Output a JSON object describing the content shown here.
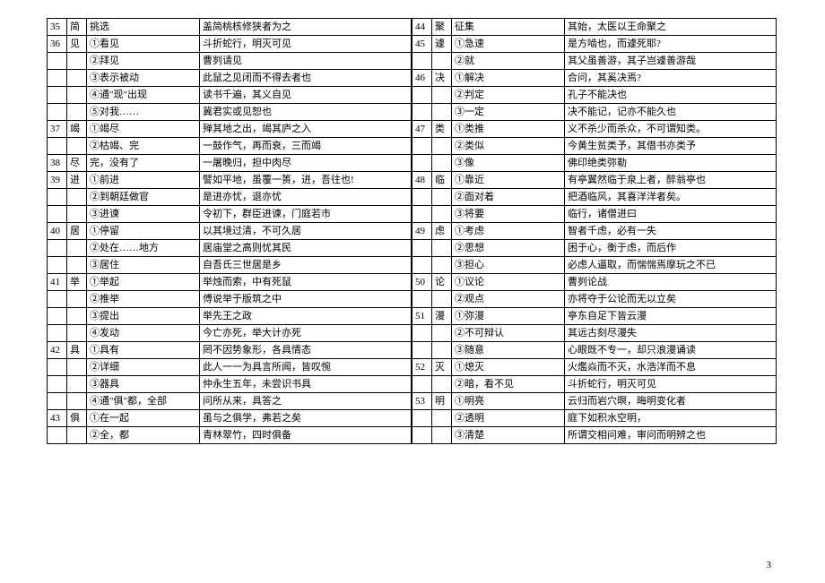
{
  "page_number": "3",
  "left": [
    {
      "n": "35",
      "c": "简",
      "d": "挑选",
      "e": "盖简桃核修狭者为之"
    },
    {
      "n": "36",
      "c": "见",
      "d": "①看见",
      "e": "斗折蛇行，明灭可见"
    },
    {
      "n": "",
      "c": "",
      "d": "②拜见",
      "e": "曹刿请见"
    },
    {
      "n": "",
      "c": "",
      "d": "③表示被动",
      "e": "此鼠之见闭而不得去者也"
    },
    {
      "n": "",
      "c": "",
      "d": "④通\"现\"出现",
      "e": "读书千遍，其义自见"
    },
    {
      "n": "",
      "c": "",
      "d": "⑤对我……",
      "e": "冀君实或见恕也"
    },
    {
      "n": "37",
      "c": "竭",
      "d": "①竭尽",
      "e": "殚其地之出，竭其庐之入"
    },
    {
      "n": "",
      "c": "",
      "d": "②枯竭、完",
      "e": "一鼓作气，再而衰，三而竭"
    },
    {
      "n": "38",
      "c": "尽",
      "d": "完，没有了",
      "e": "一屠晚归，担中肉尽"
    },
    {
      "n": "39",
      "c": "进",
      "d": "①前进",
      "e": "譬如平地，虽覆一篑，进，吾往也!"
    },
    {
      "n": "",
      "c": "",
      "d": "②到朝廷做官",
      "e": "是进亦忧，退亦忧"
    },
    {
      "n": "",
      "c": "",
      "d": "③进谏",
      "e": "令初下，群臣进谏，门庭若市"
    },
    {
      "n": "40",
      "c": "居",
      "d": "①停留",
      "e": "以其境过清，不可久居"
    },
    {
      "n": "",
      "c": "",
      "d": "②处在……地方",
      "e": "居庙堂之高则忧其民"
    },
    {
      "n": "",
      "c": "",
      "d": "③居住",
      "e": "自吾氏三世居是乡"
    },
    {
      "n": "41",
      "c": "举",
      "d": "①举起",
      "e": "举烛而索，中有死鼠"
    },
    {
      "n": "",
      "c": "",
      "d": "②推举",
      "e": "傅说举于版筑之中"
    },
    {
      "n": "",
      "c": "",
      "d": "③提出",
      "e": "举先王之政"
    },
    {
      "n": "",
      "c": "",
      "d": "④发动",
      "e": "今亡亦死，举大计亦死"
    },
    {
      "n": "42",
      "c": "具",
      "d": "①具有",
      "e": "罔不因势象形，各具情态"
    },
    {
      "n": "",
      "c": "",
      "d": "②详细",
      "e": "此人一一为具言所闻，皆叹惋"
    },
    {
      "n": "",
      "c": "",
      "d": "③器具",
      "e": "仲永生五年，未尝识书具"
    },
    {
      "n": "",
      "c": "",
      "d": "④通\"俱\"都，全部",
      "e": "问所从来，具答之"
    },
    {
      "n": "43",
      "c": "俱",
      "d": "①在一起",
      "e": "虽与之俱学，弗若之矣"
    },
    {
      "n": "",
      "c": "",
      "d": "②全，都",
      "e": "青林翠竹，四时俱备"
    }
  ],
  "right": [
    {
      "n": "44",
      "c": "聚",
      "d": "征集",
      "e": "其始，太医以王命聚之"
    },
    {
      "n": "45",
      "c": "遽",
      "d": "①急速",
      "e": "是方啮也，而遽死耶?"
    },
    {
      "n": "",
      "c": "",
      "d": "②就",
      "e": "其父虽善游，其子岂遽善游哉"
    },
    {
      "n": "46",
      "c": "决",
      "d": "①解决",
      "e": "合问，其奚决焉?"
    },
    {
      "n": "",
      "c": "",
      "d": "②判定",
      "e": "孔子不能决也"
    },
    {
      "n": "",
      "c": "",
      "d": "③一定",
      "e": "决不能记，记亦不能久也"
    },
    {
      "n": "47",
      "c": "类",
      "d": "①类推",
      "e": "义不杀少而杀众，不可谓知类。"
    },
    {
      "n": "",
      "c": "",
      "d": "②类似",
      "e": "今黄生贫类予，其借书亦类予"
    },
    {
      "n": "",
      "c": "",
      "d": "③像",
      "e": "佛印绝类弥勒"
    },
    {
      "n": "48",
      "c": "临",
      "d": "①靠近",
      "e": "有亭翼然临于泉上者，醉翁亭也"
    },
    {
      "n": "",
      "c": "",
      "d": "②面对着",
      "e": "把酒临风，其喜洋洋者矣。"
    },
    {
      "n": "",
      "c": "",
      "d": "③将要",
      "e": "临行，诸僧进曰"
    },
    {
      "n": "49",
      "c": "虑",
      "d": "①考虑",
      "e": "智者千虑，必有一失"
    },
    {
      "n": "",
      "c": "",
      "d": "②思想",
      "e": "困于心，衡于虑，而后作"
    },
    {
      "n": "",
      "c": "",
      "d": "③担心",
      "e": "必虑人逼取，而惴惴焉摩玩之不已"
    },
    {
      "n": "50",
      "c": "论",
      "d": "①议论",
      "e": "曹刿论战"
    },
    {
      "n": "",
      "c": "",
      "d": "②观点",
      "e": "亦将夺于公论而无以立矣"
    },
    {
      "n": "51",
      "c": "漫",
      "d": "①弥漫",
      "e": "亭东自足下皆云漫"
    },
    {
      "n": "",
      "c": "",
      "d": "②不可辩认",
      "e": "其远古刻尽漫失"
    },
    {
      "n": "",
      "c": "",
      "d": "③随意",
      "e": "心眼既不专一，却只浪漫诵读"
    },
    {
      "n": "52",
      "c": "灭",
      "d": "①熄灭",
      "e": "火爁焱而不灭，水浩洋而不息"
    },
    {
      "n": "",
      "c": "",
      "d": "②暗，看不见",
      "e": "斗折蛇行，明灭可见"
    },
    {
      "n": "53",
      "c": "明",
      "d": "①明亮",
      "e": "云归而岩穴暝，晦明变化者"
    },
    {
      "n": "",
      "c": "",
      "d": "②透明",
      "e": "庭下如积水空明，"
    },
    {
      "n": "",
      "c": "",
      "d": "③清楚",
      "e": "所谓交相问难，审问而明辨之也"
    }
  ]
}
